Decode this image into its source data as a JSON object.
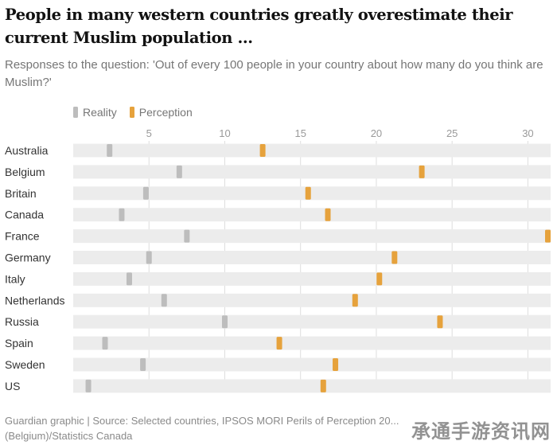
{
  "title": "People in many western countries greatly overestimate their current Muslim population ...",
  "subtitle": "Responses to the question: 'Out of every 100 people in your country about how many do you think are Muslim?'",
  "legend": {
    "reality": "Reality",
    "perception": "Perception"
  },
  "colors": {
    "reality": "#bdbdbd",
    "perception": "#e6a23c",
    "track": "#ececec",
    "axis_text": "#9a9a9a"
  },
  "footer": "Guardian graphic | Source: Selected countries, IPSOS MORI Perils of Perception 20... (Belgium)/Statistics Canada",
  "watermark": "承通手游资讯网",
  "chart_data": {
    "type": "dot",
    "title": "People in many western countries greatly overestimate their current Muslim population ...",
    "xlim": [
      0,
      31.5
    ],
    "xticks": [
      5,
      10,
      15,
      20,
      25,
      30
    ],
    "grid": true,
    "legend_position": "top-left",
    "categories": [
      "Australia",
      "Belgium",
      "Britain",
      "Canada",
      "France",
      "Germany",
      "Italy",
      "Netherlands",
      "Russia",
      "Spain",
      "Sweden",
      "US"
    ],
    "series": [
      {
        "name": "Reality",
        "values": [
          2.4,
          7.0,
          4.8,
          3.2,
          7.5,
          5.0,
          3.7,
          6.0,
          10.0,
          2.1,
          4.6,
          1.0
        ]
      },
      {
        "name": "Perception",
        "values": [
          12.5,
          23.0,
          15.5,
          16.8,
          31.5,
          21.2,
          20.2,
          18.6,
          24.2,
          13.6,
          17.3,
          16.5
        ]
      }
    ]
  }
}
